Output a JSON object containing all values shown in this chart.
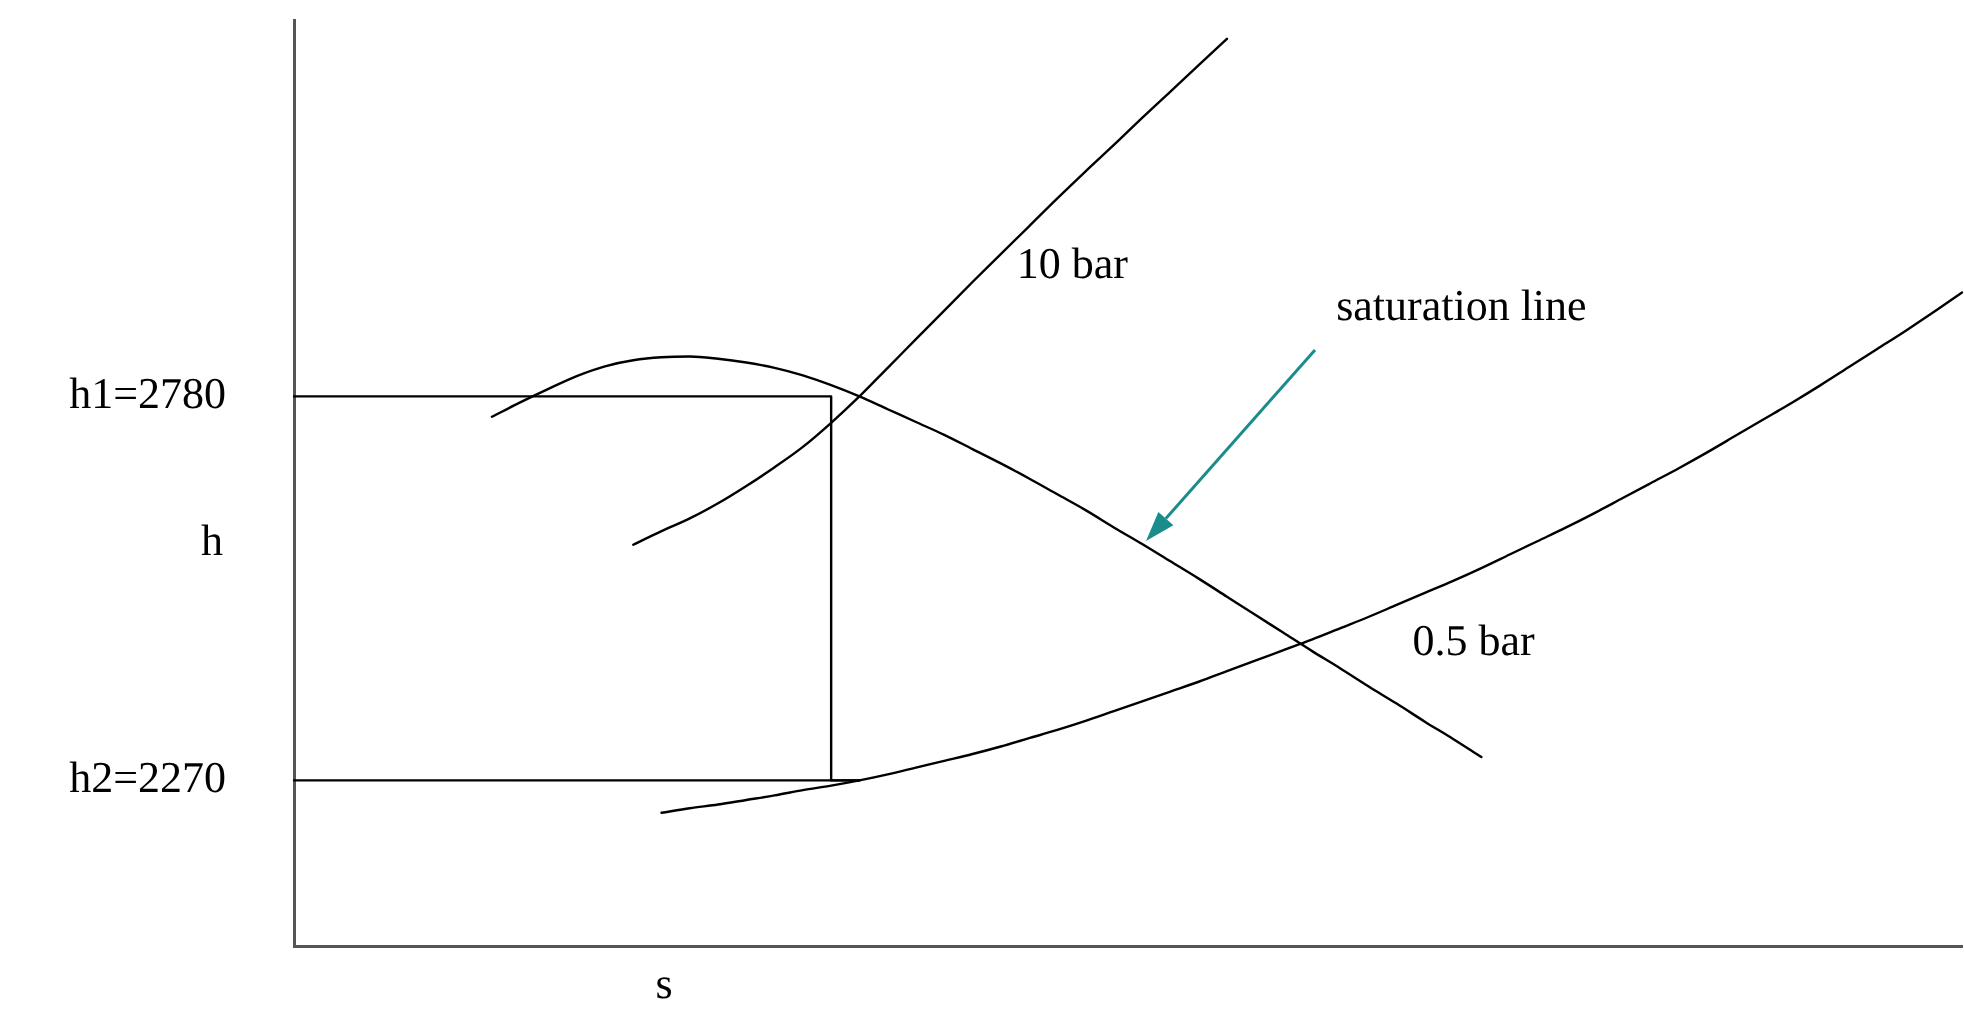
{
  "chart_data": {
    "type": "line",
    "xlabel": "s",
    "ylabel": "h",
    "categories": [
      null,
      null,
      null,
      null,
      null,
      null,
      null,
      null,
      null,
      null,
      null,
      null,
      null,
      null,
      null,
      null,
      null,
      null,
      null,
      null,
      null,
      null,
      null,
      null,
      null,
      null,
      null,
      null,
      null,
      null,
      null,
      null,
      null,
      null,
      null,
      null,
      null,
      null,
      null,
      null,
      null,
      null,
      null,
      null,
      null,
      null,
      null,
      null,
      null,
      null,
      null,
      null,
      null,
      null,
      null,
      null,
      null,
      null,
      null,
      null
    ],
    "series": [
      {
        "name": "saturation line",
        "color": "#000000",
        "values": [
          null,
          null,
          null,
          null,
          null,
          null,
          null,
          2753,
          2772,
          2790,
          2807,
          2820,
          2828,
          2832,
          2833,
          2830,
          2825,
          2818,
          2808,
          2795,
          2780,
          2763,
          2746,
          2729,
          2710,
          2691,
          2671,
          2650,
          2629,
          2606,
          2584,
          2561,
          2538,
          2514,
          2490,
          2466,
          2442,
          2419,
          2395,
          2372,
          2348,
          2325,
          2301,
          null,
          null,
          null,
          null,
          null,
          null,
          null,
          null,
          null,
          null,
          null,
          null,
          null,
          null,
          null,
          null,
          null
        ]
      },
      {
        "name": "10 bar",
        "color": "#000000",
        "values": [
          null,
          null,
          null,
          null,
          null,
          null,
          null,
          null,
          null,
          null,
          null,
          null,
          2583,
          2601,
          2618,
          2638,
          2661,
          2686,
          2713,
          2745,
          2780,
          2818,
          2856,
          2894,
          2932,
          2969,
          3006,
          3043,
          3079,
          3114,
          3150,
          3185,
          3220,
          3255,
          null,
          null,
          null,
          null,
          null,
          null,
          null,
          null,
          null,
          null,
          null,
          null,
          null,
          null,
          null,
          null,
          null,
          null,
          null,
          null,
          null,
          null,
          null,
          null,
          null,
          null
        ]
      },
      {
        "name": "0.5 bar",
        "color": "#000000",
        "values": [
          null,
          null,
          null,
          null,
          null,
          null,
          null,
          null,
          null,
          null,
          null,
          null,
          null,
          2227,
          2233,
          2238,
          2244,
          2250,
          2257,
          2263,
          2270,
          2278,
          2287,
          2296,
          2305,
          2315,
          2326,
          2337,
          2349,
          2362,
          2375,
          2388,
          2401,
          2415,
          2429,
          2443,
          2457,
          2472,
          2487,
          2503,
          2519,
          2535,
          2552,
          2570,
          2588,
          2606,
          2625,
          2645,
          2665,
          2685,
          2706,
          2728,
          2750,
          2772,
          2795,
          2819,
          2843,
          2867,
          2892,
          2918
        ]
      },
      {
        "type": "step",
        "color": "#000000",
        "values": [
          2780,
          2780,
          2780,
          2780,
          2780,
          2780,
          2780,
          2780,
          2780,
          2780,
          2780,
          2780,
          2780,
          2780,
          2780,
          2780,
          2780,
          2780,
          2780,
          2780,
          2270,
          null,
          null,
          null,
          null,
          null,
          null,
          null,
          null,
          null,
          null,
          null,
          null,
          null,
          null,
          null,
          null,
          null,
          null,
          null,
          null,
          null,
          null,
          null,
          null,
          null,
          null,
          null,
          null,
          null,
          null,
          null,
          null,
          null,
          null,
          null,
          null,
          null,
          null,
          null
        ]
      },
      {
        "color": "#000000",
        "values": [
          2270,
          2270,
          2270,
          2270,
          2270,
          2270,
          2270,
          2270,
          2270,
          2270,
          2270,
          2270,
          2270,
          2270,
          2270,
          2270,
          2270,
          2270,
          2270,
          2270,
          2270,
          null,
          null,
          null,
          null,
          null,
          null,
          null,
          null,
          null,
          null,
          null,
          null,
          null,
          null,
          null,
          null,
          null,
          null,
          null,
          null,
          null,
          null,
          null,
          null,
          null,
          null,
          null,
          null,
          null,
          null,
          null,
          null,
          null,
          null,
          null,
          null,
          null,
          null,
          null
        ]
      }
    ],
    "ylim": [
      2050,
      3280
    ],
    "yticks": [
      2780,
      2270
    ],
    "annotations": [
      "h1=",
      "h2="
    ],
    "tick_labels": "y",
    "grid": false,
    "legend": false,
    "marker": "none"
  }
}
